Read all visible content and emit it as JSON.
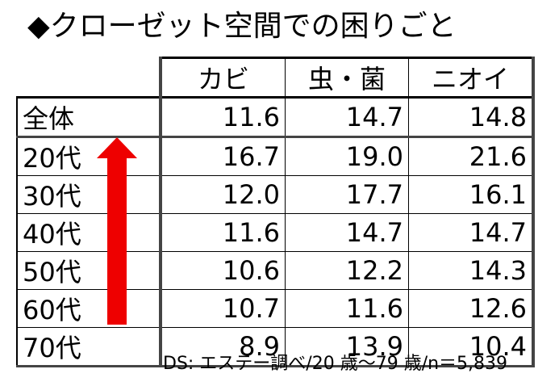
{
  "title": "◆クローゼット空間での困りごと",
  "source": "DS: エステー調べ/20 歳～79 歳/n＝5,839",
  "chart_data": {
    "type": "table",
    "columns": [
      "カビ",
      "虫・菌",
      "ニオイ"
    ],
    "rows": [
      {
        "label": "全体",
        "values": [
          "11.6",
          "14.7",
          "14.8"
        ]
      },
      {
        "label": "20代",
        "values": [
          "16.7",
          "19.0",
          "21.6"
        ]
      },
      {
        "label": "30代",
        "values": [
          "12.0",
          "17.7",
          "16.1"
        ]
      },
      {
        "label": "40代",
        "values": [
          "11.6",
          "14.7",
          "14.7"
        ]
      },
      {
        "label": "50代",
        "values": [
          "10.6",
          "12.2",
          "14.3"
        ]
      },
      {
        "label": "60代",
        "values": [
          "10.7",
          "11.6",
          "12.6"
        ]
      },
      {
        "label": "70代",
        "values": [
          "8.9",
          "13.9",
          "10.4"
        ]
      }
    ]
  },
  "arrow_color": "#ee0000"
}
